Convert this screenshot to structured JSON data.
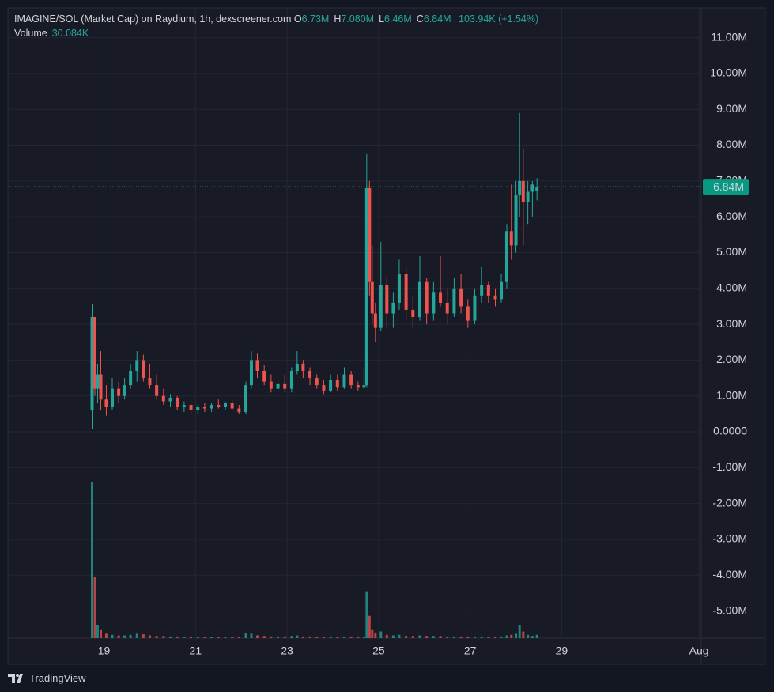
{
  "chart_data": {
    "type": "candlestick",
    "title": "IMAGINE/SOL (Market Cap) on Raydium, 1h, dexscreener.com",
    "ohlc_legend": [
      {
        "key": "O",
        "value": "6.73M"
      },
      {
        "key": "H",
        "value": "7.080M"
      },
      {
        "key": "L",
        "value": "6.46M"
      },
      {
        "key": "C",
        "value": "6.84M"
      }
    ],
    "change": "103.94K (+1.54%)",
    "volume_title": "Volume",
    "volume_value": "30.084K",
    "up_color": "#26a69a",
    "down_color": "#ef5350",
    "grid": true,
    "x": [
      18.74,
      18.8,
      18.86,
      18.93,
      19.05,
      19.18,
      19.32,
      19.45,
      19.58,
      19.72,
      19.86,
      20.0,
      20.15,
      20.3,
      20.45,
      20.6,
      20.75,
      20.9,
      21.05,
      21.2,
      21.35,
      21.5,
      21.65,
      21.8,
      21.95,
      22.1,
      22.22,
      22.35,
      22.5,
      22.65,
      22.8,
      22.95,
      23.1,
      23.22,
      23.35,
      23.5,
      23.65,
      23.8,
      23.95,
      24.1,
      24.25,
      24.4,
      24.55,
      24.68,
      24.74,
      24.8,
      24.86,
      24.93,
      25.05,
      25.18,
      25.32,
      25.45,
      25.6,
      25.75,
      25.9,
      26.05,
      26.2,
      26.35,
      26.5,
      26.65,
      26.8,
      26.95,
      27.1,
      27.25,
      27.4,
      27.55,
      27.68,
      27.8,
      27.9,
      28.0,
      28.08,
      28.16,
      28.26,
      28.36,
      28.46
    ],
    "open": [
      0.6,
      3.2,
      1.2,
      1.6,
      0.9,
      0.7,
      1.2,
      1.0,
      1.3,
      1.7,
      2.0,
      1.5,
      1.3,
      1.0,
      0.85,
      0.95,
      0.7,
      0.75,
      0.6,
      0.7,
      0.65,
      0.75,
      0.7,
      0.8,
      0.65,
      0.55,
      1.3,
      2.0,
      1.7,
      1.4,
      1.2,
      1.35,
      1.2,
      1.7,
      1.9,
      1.7,
      1.5,
      1.3,
      1.15,
      1.45,
      1.25,
      1.6,
      1.3,
      1.25,
      1.3,
      6.8,
      4.2,
      3.3,
      2.9,
      4.1,
      3.3,
      3.6,
      4.4,
      3.4,
      3.2,
      4.2,
      3.3,
      3.9,
      3.6,
      3.3,
      4.0,
      3.5,
      3.1,
      3.8,
      4.1,
      3.8,
      3.7,
      4.2,
      5.6,
      5.2,
      6.6,
      7.0,
      6.4,
      6.7,
      6.73
    ],
    "high": [
      3.55,
      3.2,
      1.9,
      2.25,
      1.3,
      1.5,
      1.4,
      1.5,
      1.9,
      2.25,
      2.15,
      1.9,
      1.6,
      1.2,
      1.05,
      1.0,
      0.85,
      0.8,
      0.75,
      0.8,
      0.8,
      0.9,
      0.85,
      0.9,
      0.75,
      1.4,
      2.25,
      2.2,
      1.85,
      1.6,
      1.5,
      1.6,
      1.8,
      2.25,
      2.0,
      1.8,
      1.6,
      1.45,
      1.6,
      1.6,
      1.8,
      1.7,
      1.4,
      1.8,
      7.75,
      7.0,
      5.2,
      3.6,
      5.3,
      4.3,
      3.9,
      4.8,
      4.6,
      3.8,
      4.9,
      4.3,
      4.2,
      4.9,
      4.0,
      4.3,
      4.4,
      3.7,
      4.0,
      4.6,
      4.2,
      4.0,
      4.4,
      5.8,
      6.9,
      7.0,
      8.9,
      7.9,
      7.0,
      7.0,
      7.08
    ],
    "low": [
      0.08,
      1.0,
      0.8,
      0.6,
      0.45,
      0.6,
      0.8,
      0.9,
      1.2,
      1.4,
      1.4,
      1.2,
      0.9,
      0.75,
      0.7,
      0.6,
      0.55,
      0.5,
      0.5,
      0.55,
      0.55,
      0.65,
      0.6,
      0.6,
      0.5,
      0.5,
      1.2,
      1.5,
      1.3,
      1.1,
      1.0,
      1.1,
      1.1,
      1.6,
      1.5,
      1.3,
      1.2,
      1.05,
      1.1,
      1.15,
      1.2,
      1.2,
      1.15,
      1.2,
      1.25,
      3.8,
      3.0,
      2.5,
      2.8,
      2.9,
      2.9,
      3.4,
      3.1,
      2.9,
      3.1,
      3.0,
      3.1,
      3.5,
      3.0,
      3.2,
      3.3,
      2.9,
      3.0,
      3.6,
      3.6,
      3.5,
      3.6,
      4.0,
      4.8,
      5.0,
      6.0,
      5.2,
      5.8,
      6.0,
      6.46
    ],
    "close": [
      3.2,
      1.2,
      1.6,
      0.9,
      0.7,
      1.2,
      1.0,
      1.3,
      1.7,
      2.0,
      1.5,
      1.3,
      1.0,
      0.85,
      0.95,
      0.7,
      0.75,
      0.6,
      0.7,
      0.65,
      0.75,
      0.7,
      0.8,
      0.65,
      0.55,
      1.3,
      2.0,
      1.7,
      1.4,
      1.2,
      1.35,
      1.2,
      1.7,
      1.9,
      1.7,
      1.5,
      1.3,
      1.15,
      1.45,
      1.25,
      1.6,
      1.3,
      1.25,
      1.3,
      6.8,
      4.2,
      3.3,
      2.9,
      4.1,
      3.3,
      3.6,
      4.4,
      3.4,
      3.2,
      4.2,
      3.3,
      3.9,
      3.6,
      3.3,
      4.0,
      3.5,
      3.1,
      3.8,
      4.1,
      3.8,
      3.7,
      4.2,
      5.6,
      5.2,
      6.6,
      7.0,
      6.4,
      6.7,
      6.9,
      6.84
    ],
    "volume": [
      1400,
      550,
      120,
      80,
      40,
      30,
      25,
      25,
      30,
      40,
      35,
      25,
      20,
      20,
      15,
      15,
      12,
      12,
      10,
      10,
      10,
      10,
      10,
      10,
      10,
      45,
      40,
      25,
      20,
      15,
      15,
      15,
      20,
      25,
      15,
      15,
      12,
      12,
      12,
      12,
      15,
      12,
      10,
      10,
      420,
      200,
      80,
      50,
      60,
      30,
      25,
      30,
      20,
      20,
      25,
      20,
      20,
      20,
      15,
      15,
      15,
      15,
      15,
      15,
      12,
      12,
      15,
      25,
      30,
      40,
      120,
      60,
      30,
      20,
      30.084
    ],
    "last_price": {
      "value": 6.84,
      "label": "6.84M"
    },
    "xlim": [
      16.9,
      32.05
    ],
    "xticks": [
      19,
      21,
      23,
      25,
      27,
      29,
      {
        "value": 32,
        "label": "Aug"
      }
    ],
    "ylim": [
      -5.76,
      11.83
    ],
    "yticks": [
      {
        "value": 11,
        "label": "11.00M"
      },
      {
        "value": 10,
        "label": "10.00M"
      },
      {
        "value": 9,
        "label": "9.00M"
      },
      {
        "value": 8,
        "label": "8.00M"
      },
      {
        "value": 7,
        "label": "7.00M"
      },
      {
        "value": 6,
        "label": "6.00M"
      },
      {
        "value": 5,
        "label": "5.00M"
      },
      {
        "value": 4,
        "label": "4.00M"
      },
      {
        "value": 3,
        "label": "3.00M"
      },
      {
        "value": 2,
        "label": "2.00M"
      },
      {
        "value": 1,
        "label": "1.00M"
      },
      {
        "value": 0,
        "label": "0.0000"
      },
      {
        "value": -1,
        "label": "-1.00M"
      },
      {
        "value": -2,
        "label": "-2.00M"
      },
      {
        "value": -3,
        "label": "-3.00M"
      },
      {
        "value": -4,
        "label": "-4.00M"
      },
      {
        "value": -5,
        "label": "-5.00M"
      }
    ]
  },
  "footer": {
    "brand": "TradingView"
  }
}
